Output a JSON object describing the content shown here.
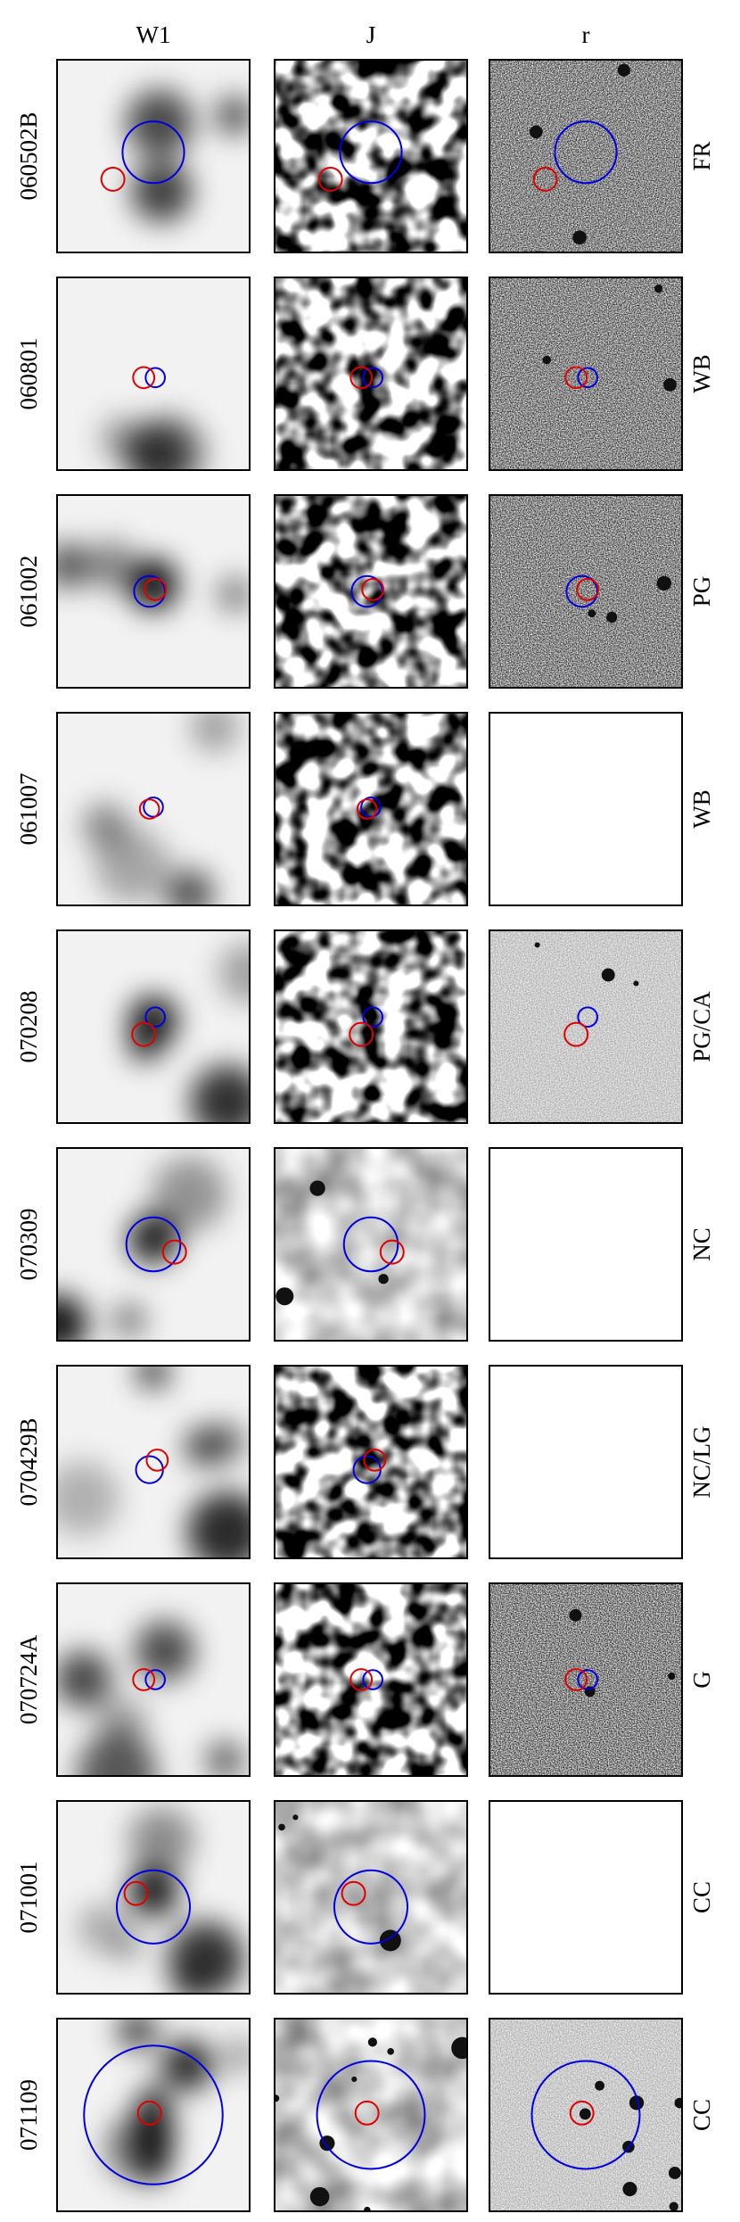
{
  "columns": [
    "W1",
    "J",
    "r"
  ],
  "rows": [
    {
      "name": "060502B",
      "class": "FR"
    },
    {
      "name": "060801",
      "class": "WB"
    },
    {
      "name": "061002",
      "class": "PG"
    },
    {
      "name": "061007",
      "class": "WB"
    },
    {
      "name": "070208",
      "class": "PG/CA"
    },
    {
      "name": "070309",
      "class": "NC"
    },
    {
      "name": "070429B",
      "class": "NC/LG"
    },
    {
      "name": "070724A",
      "class": "G"
    },
    {
      "name": "071001",
      "class": "CC"
    },
    {
      "name": "071109",
      "class": "CC"
    }
  ]
}
